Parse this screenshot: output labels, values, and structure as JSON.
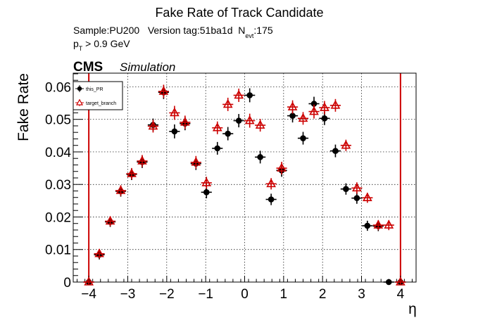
{
  "chart_data": {
    "type": "scatter",
    "title": "Fake Rate of Track Candidate",
    "info_line1": "Sample:PU200   Version tag:51ba1d  N",
    "info_line1_sub": "evt",
    "info_line1_tail": ":175",
    "info_line2": "p",
    "info_line2_sub": "T",
    "info_line2_tail": " > 0.9 GeV",
    "cms_label": "CMS",
    "sim_label": "Simulation",
    "xlabel": "η",
    "ylabel": "Fake Rate",
    "xlim": [
      -4.4,
      4.4
    ],
    "ylim": [
      0,
      0.0642
    ],
    "xticks": [
      -4,
      -3,
      -2,
      -1,
      0,
      1,
      2,
      3,
      4
    ],
    "xtick_labels": [
      "−4",
      "−3",
      "−2",
      "−1",
      "0",
      "1",
      "2",
      "3",
      "4"
    ],
    "yticks": [
      0,
      0.01,
      0.02,
      0.03,
      0.04,
      0.05,
      0.06
    ],
    "ytick_labels": [
      "0",
      "0.01",
      "0.02",
      "0.03",
      "0.04",
      "0.05",
      "0.06"
    ],
    "grid": true,
    "legend_position": "top-left",
    "x_half_bin": 0.137,
    "boundary_lines": [
      -4.0,
      4.0
    ],
    "colors": {
      "this_PR": "#000000",
      "target_branch": "#cc0000",
      "boundary": "#cc0000"
    },
    "series": [
      {
        "name": "this_PR",
        "marker": "filled-circle",
        "x": [
          -4.0,
          -3.73,
          -3.45,
          -3.18,
          -2.9,
          -2.63,
          -2.35,
          -2.08,
          -1.8,
          -1.53,
          -1.25,
          -0.98,
          -0.7,
          -0.43,
          -0.15,
          0.13,
          0.4,
          0.68,
          0.95,
          1.23,
          1.5,
          1.78,
          2.05,
          2.33,
          2.6,
          2.88,
          3.15,
          3.43,
          3.7,
          4.0
        ],
        "y": [
          0.0,
          0.0084,
          0.0185,
          0.0279,
          0.0331,
          0.0369,
          0.0483,
          0.0583,
          0.0463,
          0.0487,
          0.0364,
          0.0276,
          0.0411,
          0.0456,
          0.0496,
          0.0574,
          0.0384,
          0.0254,
          0.0343,
          0.0511,
          0.0442,
          0.0548,
          0.0503,
          0.0403,
          0.0286,
          0.0258,
          0.0173,
          0.0172,
          0.0,
          0.0
        ],
        "yerr": [
          0.0,
          0.0008,
          0.0009,
          0.001,
          0.0011,
          0.0012,
          0.0013,
          0.0014,
          0.0015,
          0.0014,
          0.0013,
          0.0012,
          0.0013,
          0.0014,
          0.0014,
          0.0015,
          0.0013,
          0.0011,
          0.0013,
          0.0014,
          0.0013,
          0.0015,
          0.0014,
          0.0013,
          0.0011,
          0.0011,
          0.0009,
          0.0009,
          0.0,
          0.0
        ]
      },
      {
        "name": "target_branch",
        "marker": "open-triangle",
        "x": [
          -4.0,
          -3.73,
          -3.45,
          -3.18,
          -2.9,
          -2.63,
          -2.35,
          -2.08,
          -1.8,
          -1.53,
          -1.25,
          -0.98,
          -0.7,
          -0.43,
          -0.15,
          0.13,
          0.4,
          0.68,
          0.95,
          1.23,
          1.5,
          1.78,
          2.05,
          2.33,
          2.6,
          2.88,
          3.15,
          3.43,
          3.7,
          4.0
        ],
        "y": [
          0.0,
          0.0087,
          0.0187,
          0.0281,
          0.0333,
          0.0372,
          0.0479,
          0.0586,
          0.052,
          0.0491,
          0.0368,
          0.0305,
          0.0474,
          0.0546,
          0.0574,
          0.0496,
          0.0482,
          0.0302,
          0.035,
          0.0538,
          0.0503,
          0.0524,
          0.0536,
          0.0543,
          0.042,
          0.0289,
          0.0259,
          0.0175,
          0.0175,
          0.0
        ],
        "yerr": [
          0.0,
          0.0008,
          0.0009,
          0.001,
          0.0011,
          0.0012,
          0.0013,
          0.0014,
          0.0015,
          0.0014,
          0.0013,
          0.0012,
          0.0013,
          0.0014,
          0.0014,
          0.0015,
          0.0013,
          0.0011,
          0.0013,
          0.0014,
          0.0013,
          0.0015,
          0.0014,
          0.0013,
          0.0011,
          0.0011,
          0.0009,
          0.0009,
          0.0009,
          0.0
        ]
      }
    ]
  }
}
